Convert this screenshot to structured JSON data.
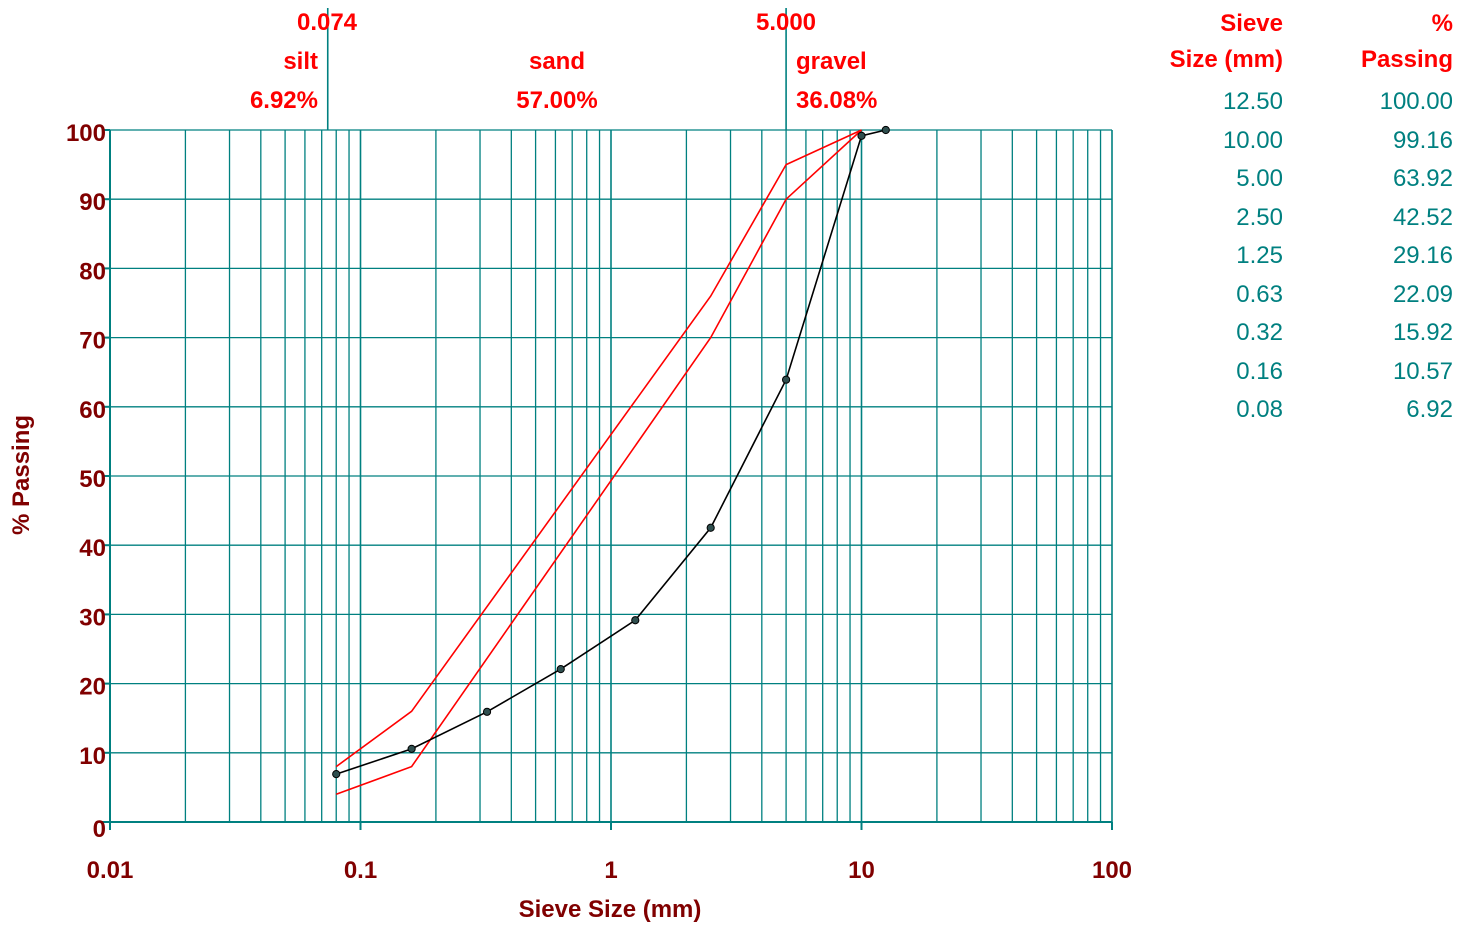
{
  "colors": {
    "grid": "#008080",
    "axis_text": "#800000",
    "zone_text": "#ff0000",
    "envelope": "#ff0000",
    "curve": "#000000",
    "table_values": "#008080",
    "table_header": "#ff0000"
  },
  "chart_data": {
    "type": "line",
    "xlabel": "Sieve Size (mm)",
    "ylabel": "% Passing",
    "xscale": "log",
    "xlim": [
      0.01,
      100
    ],
    "ylim": [
      0,
      100
    ],
    "x_tick_labels": [
      "0.01",
      "0.1",
      "1",
      "10",
      "100"
    ],
    "y_tick_labels": [
      "0",
      "10",
      "20",
      "30",
      "40",
      "50",
      "60",
      "70",
      "80",
      "90",
      "100"
    ],
    "grid": true,
    "series": [
      {
        "x": [
          0.08,
          0.16,
          0.32,
          0.63,
          1.25,
          2.5,
          5.0,
          10.0,
          12.5
        ],
        "y": [
          6.92,
          10.57,
          15.92,
          22.09,
          29.16,
          42.52,
          63.92,
          99.16,
          100.0
        ],
        "color": "#000000",
        "markers": true
      },
      {
        "x": [
          0.08,
          0.16,
          2.5,
          5.0,
          10.0
        ],
        "y": [
          8,
          16,
          76,
          95,
          100
        ],
        "color": "#ff0000",
        "markers": false
      },
      {
        "x": [
          0.08,
          0.16,
          2.5,
          5.0,
          10.0
        ],
        "y": [
          4,
          8,
          70,
          90,
          100
        ],
        "color": "#ff0000",
        "markers": false
      }
    ],
    "boundaries": [
      {
        "x": 0.074,
        "label": "0.074"
      },
      {
        "x": 5.0,
        "label": "5.000"
      }
    ],
    "zones": [
      {
        "name": "silt",
        "percent": "6.92%"
      },
      {
        "name": "sand",
        "percent": "57.00%"
      },
      {
        "name": "gravel",
        "percent": "36.08%"
      }
    ]
  },
  "table": {
    "header_sieve": [
      "Sieve",
      "Size (mm)"
    ],
    "header_passing": [
      "%",
      "Passing"
    ],
    "sieve_sizes": [
      "12.50",
      "10.00",
      "5.00",
      "2.50",
      "1.25",
      "0.63",
      "0.32",
      "0.16",
      "0.08"
    ],
    "passing": [
      "100.00",
      "99.16",
      "63.92",
      "42.52",
      "29.16",
      "22.09",
      "15.92",
      "10.57",
      "6.92"
    ]
  }
}
